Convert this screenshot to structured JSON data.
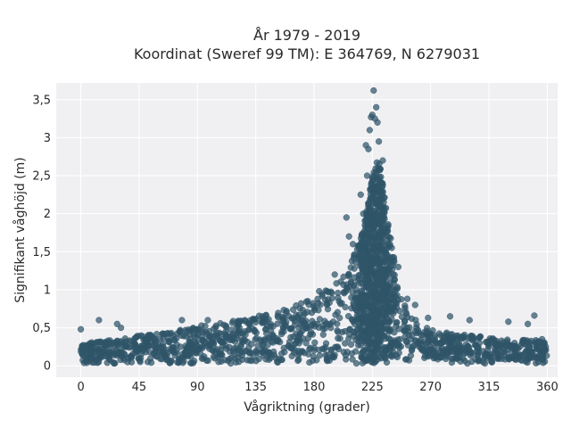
{
  "chart_data": {
    "type": "scatter",
    "title_line1": "År 1979 - 2019",
    "title_line2": "Koordinat (Sweref 99 TM): E 364769, N 6279031",
    "xlabel": "Vågriktning (grader)",
    "ylabel": "Signifikant våghöjd (m)",
    "xlim": [
      -19,
      368
    ],
    "ylim": [
      -0.15,
      3.72
    ],
    "x_ticks": [
      0,
      45,
      90,
      135,
      180,
      225,
      270,
      315,
      360
    ],
    "x_tick_labels": [
      "0",
      "45",
      "90",
      "135",
      "180",
      "225",
      "270",
      "315",
      "360"
    ],
    "y_ticks": [
      0,
      0.5,
      1,
      1.5,
      2,
      2.5,
      3,
      3.5
    ],
    "y_tick_labels": [
      "0",
      "0,5",
      "1",
      "1,5",
      "2",
      "2,5",
      "3",
      "3,5"
    ],
    "grid": true,
    "marker_color": "#2f5468",
    "plot_background": "#f0f0f3",
    "upper_envelope": {
      "x": [
        0,
        20,
        45,
        70,
        90,
        110,
        135,
        160,
        180,
        195,
        205,
        212,
        218,
        222,
        226,
        229,
        232,
        235,
        238,
        242,
        246,
        252,
        260,
        275,
        300,
        330,
        360
      ],
      "y": [
        0.3,
        0.33,
        0.4,
        0.45,
        0.52,
        0.58,
        0.65,
        0.75,
        0.9,
        1.05,
        1.25,
        1.5,
        1.8,
        2.2,
        2.6,
        2.75,
        2.55,
        2.2,
        1.8,
        1.4,
        1.0,
        0.75,
        0.58,
        0.45,
        0.4,
        0.35,
        0.33
      ]
    },
    "outliers": [
      {
        "x": 0,
        "y": 0.48
      },
      {
        "x": 14,
        "y": 0.6
      },
      {
        "x": 28,
        "y": 0.55
      },
      {
        "x": 31,
        "y": 0.5
      },
      {
        "x": 78,
        "y": 0.6
      },
      {
        "x": 98,
        "y": 0.6
      },
      {
        "x": 140,
        "y": 0.65
      },
      {
        "x": 170,
        "y": 0.82
      },
      {
        "x": 184,
        "y": 0.98
      },
      {
        "x": 196,
        "y": 1.2
      },
      {
        "x": 205,
        "y": 1.95
      },
      {
        "x": 207,
        "y": 1.7
      },
      {
        "x": 210,
        "y": 1.6
      },
      {
        "x": 216,
        "y": 2.25
      },
      {
        "x": 218,
        "y": 2.0
      },
      {
        "x": 220,
        "y": 2.9
      },
      {
        "x": 221,
        "y": 2.5
      },
      {
        "x": 222,
        "y": 2.85
      },
      {
        "x": 223,
        "y": 3.1
      },
      {
        "x": 224,
        "y": 3.27
      },
      {
        "x": 225,
        "y": 3.3
      },
      {
        "x": 226,
        "y": 3.62
      },
      {
        "x": 227,
        "y": 3.25
      },
      {
        "x": 228,
        "y": 3.4
      },
      {
        "x": 229,
        "y": 3.2
      },
      {
        "x": 230,
        "y": 2.95
      },
      {
        "x": 233,
        "y": 2.7
      },
      {
        "x": 240,
        "y": 1.55
      },
      {
        "x": 245,
        "y": 1.3
      },
      {
        "x": 252,
        "y": 0.88
      },
      {
        "x": 258,
        "y": 0.8
      },
      {
        "x": 268,
        "y": 0.63
      },
      {
        "x": 285,
        "y": 0.65
      },
      {
        "x": 300,
        "y": 0.6
      },
      {
        "x": 330,
        "y": 0.58
      },
      {
        "x": 345,
        "y": 0.55
      },
      {
        "x": 350,
        "y": 0.66
      },
      {
        "x": 356,
        "y": 0.35
      }
    ],
    "point_count": 2200
  }
}
